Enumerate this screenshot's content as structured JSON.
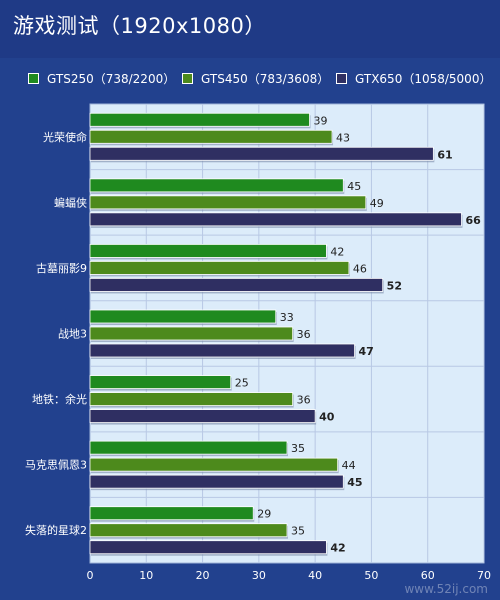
{
  "title": "游戏测试（1920x1080）",
  "colors": {
    "background": "#22418e",
    "plot_background": "#dcecfa",
    "gts250": "#1f8a1f",
    "gts450": "#4d8a1c",
    "gtx650": "#2f2f62"
  },
  "chart_data": {
    "type": "bar",
    "orientation": "horizontal",
    "title": "游戏测试（1920x1080）",
    "categories": [
      "光荣使命",
      "蝙蝠侠",
      "古墓丽影9",
      "战地3",
      "地铁：余光",
      "马克思佩恩3",
      "失落的星球2"
    ],
    "series": [
      {
        "name": "GTS250（738/2200）",
        "values": [
          39,
          45,
          42,
          33,
          25,
          35,
          29
        ]
      },
      {
        "name": "GTS450（783/3608）",
        "values": [
          43,
          49,
          46,
          36,
          36,
          44,
          35
        ]
      },
      {
        "name": "GTX650（1058/5000）",
        "values": [
          61,
          66,
          52,
          47,
          40,
          45,
          42
        ]
      }
    ],
    "xlim": [
      0,
      70
    ],
    "xticks": [
      0,
      10,
      20,
      30,
      40,
      50,
      60,
      70
    ],
    "xlabel": "",
    "ylabel": "",
    "grid": true,
    "legend_position": "top"
  },
  "watermark": "www.52ij.com"
}
